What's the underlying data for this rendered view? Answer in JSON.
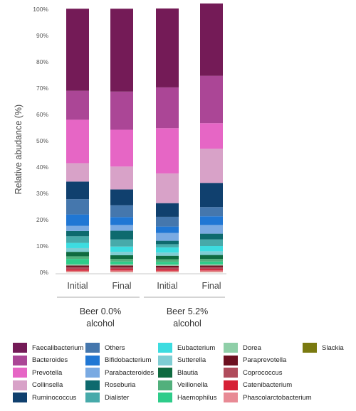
{
  "chart_data": {
    "type": "bar",
    "stacked": true,
    "ylabel": "Relative abudance (%)",
    "ylim": [
      0,
      100
    ],
    "yticks": [
      "0%",
      "10%",
      "20%",
      "30%",
      "40%",
      "50%",
      "60%",
      "70%",
      "80%",
      "90%",
      "100%"
    ],
    "categories": [
      "Initial",
      "Final",
      "Initial",
      "Final"
    ],
    "groups": [
      {
        "label_line1": "Beer 0.0%",
        "label_line2": "alcohol"
      },
      {
        "label_line1": "Beer 5.2%",
        "label_line2": "alcohol"
      }
    ],
    "series": [
      {
        "name": "Slackia",
        "color": "#7a7a10",
        "values": [
          0.1,
          0.1,
          0.1,
          0.1
        ]
      },
      {
        "name": "Phascolarctobacterium",
        "color": "#e88a95",
        "values": [
          0.5,
          0.6,
          0.5,
          0.6
        ]
      },
      {
        "name": "Catenibacterium",
        "color": "#d62035",
        "values": [
          0.5,
          0.5,
          0.5,
          0.5
        ]
      },
      {
        "name": "Coprococcus",
        "color": "#b04c5c",
        "values": [
          0.9,
          0.8,
          0.8,
          0.8
        ]
      },
      {
        "name": "Paraprevotella",
        "color": "#6d1020",
        "values": [
          0.6,
          0.6,
          0.6,
          0.6
        ]
      },
      {
        "name": "Dorea",
        "color": "#8fcfa8",
        "values": [
          0.5,
          0.5,
          0.5,
          0.5
        ]
      },
      {
        "name": "Haemophilus",
        "color": "#2ecc8a",
        "values": [
          2.0,
          1.0,
          1.0,
          1.0
        ]
      },
      {
        "name": "Veillonella",
        "color": "#52b07c",
        "values": [
          1.0,
          1.0,
          1.0,
          1.0
        ]
      },
      {
        "name": "Blautia",
        "color": "#0f6b40",
        "values": [
          1.7,
          1.4,
          1.3,
          1.5
        ]
      },
      {
        "name": "Sutterella",
        "color": "#7fcdd3",
        "values": [
          1.4,
          1.3,
          1.2,
          1.4
        ]
      },
      {
        "name": "Eubacterium",
        "color": "#3ddce0",
        "values": [
          2.0,
          2.0,
          2.0,
          2.0
        ]
      },
      {
        "name": "Dialister",
        "color": "#47aaaa",
        "values": [
          2.5,
          2.7,
          1.2,
          2.5
        ]
      },
      {
        "name": "Roseburia",
        "color": "#0e6a6e",
        "values": [
          2.0,
          3.3,
          1.3,
          2.2
        ]
      },
      {
        "name": "Parabacteroides",
        "color": "#7aaae2",
        "values": [
          2.0,
          2.2,
          3.0,
          3.3
        ]
      },
      {
        "name": "Bifidobacterium",
        "color": "#2077d4",
        "values": [
          4.3,
          3.0,
          2.4,
          3.3
        ]
      },
      {
        "name": "Others",
        "color": "#4577ad",
        "values": [
          5.8,
          4.5,
          3.7,
          3.5
        ]
      },
      {
        "name": "Ruminococcus",
        "color": "#10406e",
        "values": [
          6.7,
          6.0,
          5.2,
          9.2
        ]
      },
      {
        "name": "Collinsella",
        "color": "#d8a2c8",
        "values": [
          7.0,
          8.7,
          11.3,
          13.0
        ]
      },
      {
        "name": "Prevotella",
        "color": "#e666c5",
        "values": [
          16.5,
          14.0,
          17.2,
          9.7
        ]
      },
      {
        "name": "Bacteroides",
        "color": "#ab4696",
        "values": [
          11.0,
          14.5,
          15.5,
          18.0
        ]
      },
      {
        "name": "Faecalibacterium",
        "color": "#741b57",
        "values": [
          31.2,
          31.5,
          30.0,
          27.5
        ]
      }
    ]
  },
  "legend": [
    {
      "name": "Faecalibacterium",
      "color": "#741b57"
    },
    {
      "name": "Bacteroides",
      "color": "#ab4696"
    },
    {
      "name": "Prevotella",
      "color": "#e666c5"
    },
    {
      "name": "Collinsella",
      "color": "#d8a2c8"
    },
    {
      "name": "Ruminococcus",
      "color": "#10406e"
    },
    {
      "name": "Others",
      "color": "#4577ad"
    },
    {
      "name": "Bifidobacterium",
      "color": "#2077d4"
    },
    {
      "name": "Parabacteroides",
      "color": "#7aaae2"
    },
    {
      "name": "Roseburia",
      "color": "#0e6a6e"
    },
    {
      "name": "Dialister",
      "color": "#47aaaa"
    },
    {
      "name": "Eubacterium",
      "color": "#3ddce0"
    },
    {
      "name": "Sutterella",
      "color": "#7fcdd3"
    },
    {
      "name": "Blautia",
      "color": "#0f6b40"
    },
    {
      "name": "Veillonella",
      "color": "#52b07c"
    },
    {
      "name": "Haemophilus",
      "color": "#2ecc8a"
    },
    {
      "name": "Dorea",
      "color": "#8fcfa8"
    },
    {
      "name": "Paraprevotella",
      "color": "#6d1020"
    },
    {
      "name": "Coprococcus",
      "color": "#b04c5c"
    },
    {
      "name": "Catenibacterium",
      "color": "#d62035"
    },
    {
      "name": "Phascolarctobacterium",
      "color": "#e88a95"
    },
    {
      "name": "Slackia",
      "color": "#7a7a10"
    }
  ]
}
